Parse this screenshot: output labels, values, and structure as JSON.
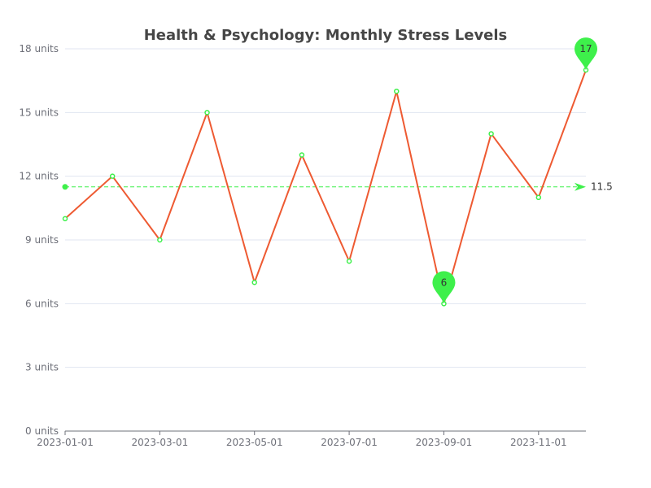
{
  "chart_data": {
    "type": "line",
    "title": "Health & Psychology: Monthly Stress Levels",
    "xlabel": "",
    "ylabel": "",
    "x": [
      "2023-01-01",
      "2023-02-01",
      "2023-03-01",
      "2023-04-01",
      "2023-05-01",
      "2023-06-01",
      "2023-07-01",
      "2023-08-01",
      "2023-09-01",
      "2023-10-01",
      "2023-11-01",
      "2023-12-01"
    ],
    "x_tick_labels": [
      "2023-01-01",
      "2023-03-01",
      "2023-05-01",
      "2023-07-01",
      "2023-09-01",
      "2023-11-01"
    ],
    "series": [
      {
        "values": [
          10,
          12,
          9,
          15,
          7,
          13,
          8,
          16,
          6,
          14,
          11,
          17
        ]
      }
    ],
    "ylim": [
      0,
      18
    ],
    "y_ticks": [
      0,
      3,
      6,
      9,
      12,
      15,
      18
    ],
    "y_tick_suffix": " units",
    "grid": true,
    "mark_point": {
      "max": {
        "label": "17",
        "value": 17,
        "x": "2023-12-01"
      },
      "min": {
        "label": "6",
        "value": 6,
        "x": "2023-09-01"
      }
    },
    "mark_line": {
      "type": "average",
      "value": 11.5,
      "label": "11.5"
    },
    "colors": {
      "line": "#ee5a32",
      "point": "#3ef04b",
      "marker": "#3ef04b",
      "grid": "#e0e6f1",
      "axis": "#6e7079",
      "title": "#464646"
    }
  }
}
